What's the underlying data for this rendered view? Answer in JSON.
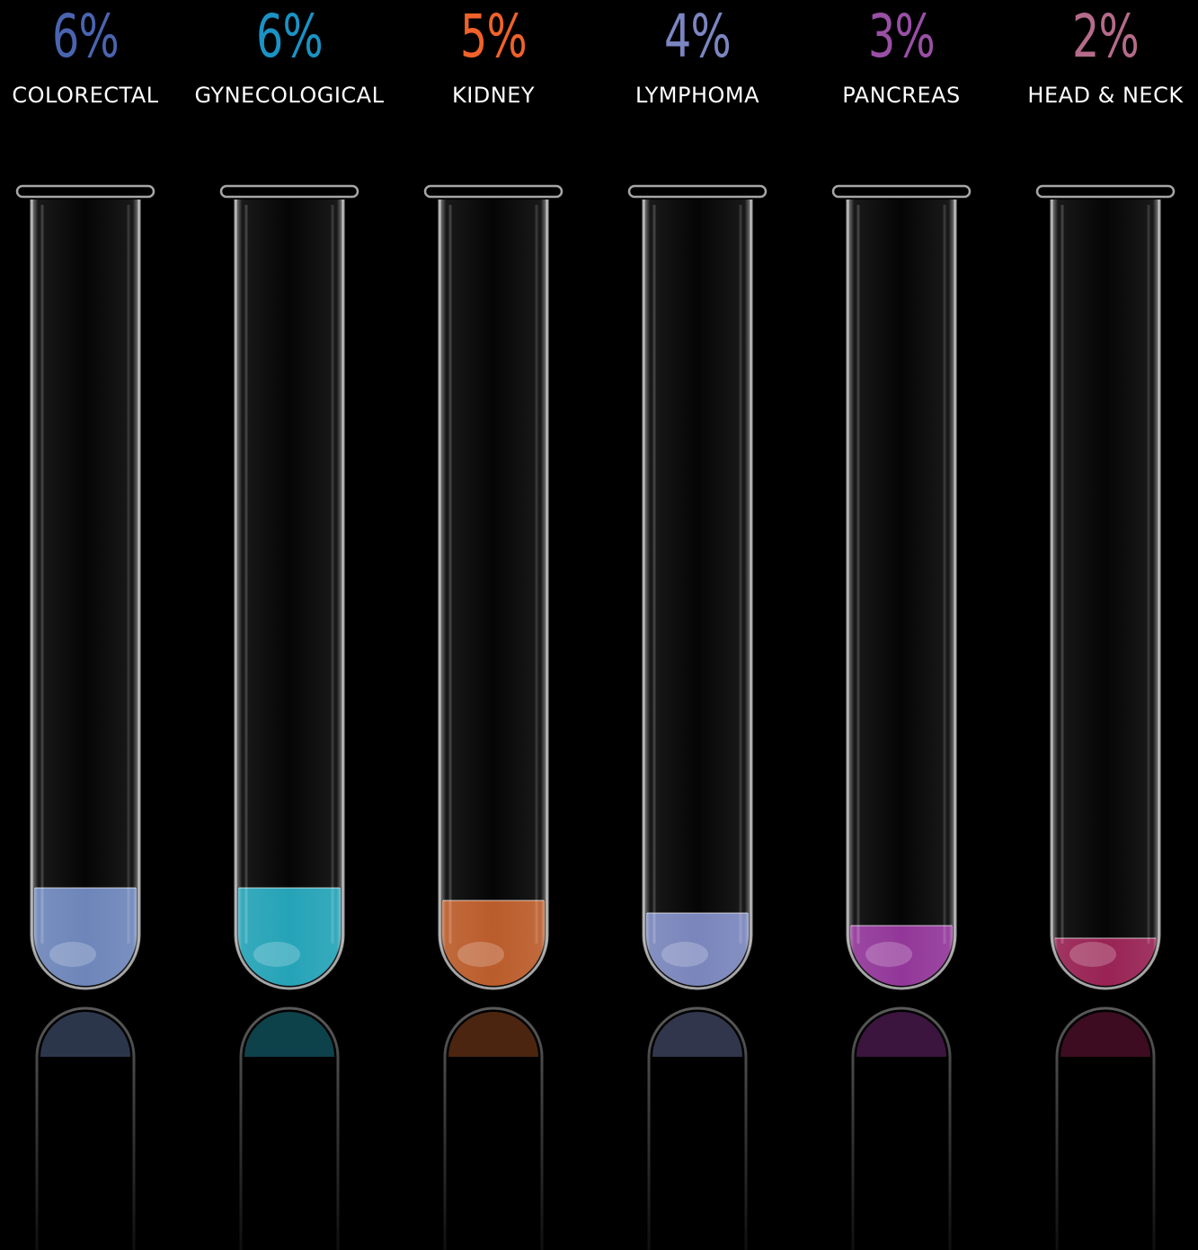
{
  "chart_data": {
    "type": "bar",
    "categories": [
      "COLORECTAL",
      "GYNECOLOGICAL",
      "KIDNEY",
      "LYMPHOMA",
      "PANCREAS",
      "HEAD & NECK"
    ],
    "values": [
      6,
      6,
      5,
      4,
      3,
      2
    ],
    "value_labels": [
      "6%",
      "6%",
      "5%",
      "4%",
      "3%",
      "2%"
    ],
    "unit": "%",
    "colors": [
      "#4a64b0",
      "#1a93c4",
      "#f0622a",
      "#7b86c2",
      "#9a4fa6",
      "#b56b8a"
    ],
    "liquid_colors": [
      "#7d9ad8",
      "#27bdd6",
      "#d9692e",
      "#8c9adb",
      "#a93cb2",
      "#b0235e"
    ]
  }
}
